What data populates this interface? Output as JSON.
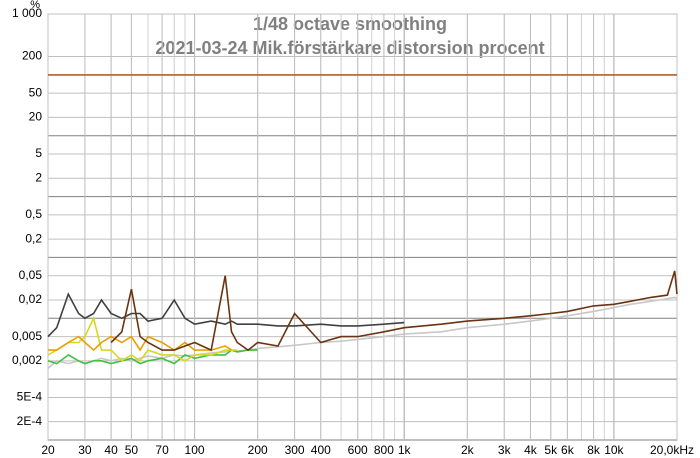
{
  "chart_data": {
    "type": "line",
    "title": "1/48 octave smoothing",
    "subtitle": "2021-03-24 Mik.förstärkare distorsion procent",
    "y_label": "%",
    "x_scale": "log",
    "y_scale": "log",
    "grid": true,
    "xlim": [
      20,
      20000
    ],
    "ylim": [
      0.0001,
      1000
    ],
    "xticks": [
      20,
      30,
      40,
      50,
      70,
      100,
      200,
      300,
      400,
      600,
      800,
      {
        "value": 1000,
        "label": "1k"
      },
      {
        "value": 2000,
        "label": "2k"
      },
      {
        "value": 3000,
        "label": "3k"
      },
      {
        "value": 4000,
        "label": "4k"
      },
      {
        "value": 5000,
        "label": "5k"
      },
      {
        "value": 6000,
        "label": "6k"
      },
      {
        "value": 8000,
        "label": "8k"
      },
      {
        "value": 10000,
        "label": "10k"
      },
      {
        "value": 20000,
        "label": "20,0kHz"
      }
    ],
    "yticks": [
      {
        "value": 1000,
        "label": "1 000"
      },
      200,
      50,
      20,
      5,
      2,
      {
        "value": 0.5,
        "label": "0,5"
      },
      {
        "value": 0.2,
        "label": "0,2"
      },
      {
        "value": 0.05,
        "label": "0,05"
      },
      {
        "value": 0.02,
        "label": "0,02"
      },
      {
        "value": 0.005,
        "label": "0,005"
      },
      {
        "value": 0.002,
        "label": "0,002"
      },
      {
        "value": 0.0005,
        "label": "5E-4"
      },
      {
        "value": 0.0002,
        "label": "2E-4"
      }
    ],
    "x": [
      20,
      22,
      25,
      28,
      30,
      33,
      36,
      40,
      45,
      50,
      55,
      60,
      70,
      80,
      90,
      100,
      120,
      140,
      150,
      160,
      180,
      200,
      250,
      300,
      400,
      500,
      600,
      800,
      1000,
      1500,
      2000,
      3000,
      4000,
      5000,
      6000,
      8000,
      10000,
      12000,
      15000,
      18000,
      19500,
      20000
    ],
    "series": [
      {
        "color": "#c8c8c8",
        "values": [
          0.0015,
          0.002,
          0.0018,
          0.002,
          0.0018,
          0.002,
          0.0022,
          0.002,
          0.0022,
          0.002,
          0.0022,
          0.0024,
          0.0022,
          0.0025,
          0.0024,
          0.0025,
          0.0027,
          0.0028,
          0.003,
          0.0029,
          0.003,
          0.0032,
          0.0034,
          0.0036,
          0.004,
          0.0042,
          0.0045,
          0.005,
          0.0055,
          0.006,
          0.007,
          0.008,
          0.009,
          0.01,
          0.011,
          0.013,
          0.015,
          0.017,
          0.019,
          0.021,
          0.022,
          0.021
        ]
      },
      {
        "color": "#40c040",
        "values": [
          0.002,
          0.0018,
          0.0025,
          0.002,
          0.0018,
          0.002,
          0.002,
          0.0018,
          0.002,
          0.0022,
          0.0018,
          0.002,
          0.0022,
          0.0018,
          0.0025,
          0.0022,
          0.0025,
          0.0025,
          0.003,
          0.0028,
          0.003,
          0.003,
          null,
          null,
          null,
          null,
          null,
          null,
          null,
          null,
          null,
          null,
          null,
          null,
          null,
          null,
          null,
          null,
          null,
          null,
          null,
          null
        ]
      },
      {
        "color": "#d8d820",
        "values": [
          0.0025,
          0.003,
          0.004,
          0.004,
          0.005,
          0.01,
          0.003,
          0.003,
          0.002,
          0.0025,
          0.002,
          0.003,
          0.0025,
          0.0025,
          0.002,
          0.0025,
          0.0025,
          0.003,
          0.003,
          0.003,
          null,
          null,
          null,
          null,
          null,
          null,
          null,
          null,
          null,
          null,
          null,
          null,
          null,
          null,
          null,
          null,
          null,
          null,
          null,
          null,
          null,
          null
        ]
      },
      {
        "color": "#e8a000",
        "values": [
          0.003,
          0.003,
          0.004,
          0.005,
          0.004,
          0.003,
          0.004,
          0.005,
          0.004,
          0.005,
          0.003,
          0.005,
          0.004,
          0.003,
          0.004,
          0.003,
          0.003,
          0.0035,
          0.003,
          null,
          null,
          null,
          null,
          null,
          null,
          null,
          null,
          null,
          null,
          null,
          null,
          null,
          null,
          null,
          null,
          null,
          null,
          null,
          null,
          null,
          null,
          null
        ]
      },
      {
        "color": "#404040",
        "values": [
          0.005,
          0.007,
          0.025,
          0.012,
          0.01,
          0.012,
          0.02,
          0.012,
          0.01,
          0.012,
          0.012,
          0.009,
          0.01,
          0.02,
          0.01,
          0.008,
          0.009,
          0.008,
          0.009,
          0.008,
          0.008,
          0.008,
          0.0075,
          0.0075,
          0.008,
          0.0075,
          0.0075,
          0.008,
          0.0085,
          null,
          null,
          null,
          null,
          null,
          null,
          null,
          null,
          null,
          null,
          null,
          null,
          null
        ]
      },
      {
        "color": "#6b3310",
        "values": [
          null,
          null,
          null,
          null,
          null,
          null,
          null,
          0.004,
          0.006,
          0.03,
          0.005,
          0.004,
          0.003,
          0.003,
          0.0035,
          0.004,
          0.003,
          0.05,
          0.006,
          0.004,
          0.003,
          0.004,
          0.0035,
          0.012,
          0.004,
          0.005,
          0.005,
          0.006,
          0.007,
          0.008,
          0.009,
          0.01,
          0.011,
          0.012,
          0.013,
          0.016,
          0.017,
          0.019,
          0.022,
          0.024,
          0.06,
          0.025
        ]
      },
      {
        "color": "#b5602b",
        "values": [
          100,
          100,
          100,
          100,
          100,
          100,
          100,
          100,
          100,
          100,
          100,
          100,
          100,
          100,
          100,
          100,
          100,
          100,
          100,
          100,
          100,
          100,
          100,
          100,
          100,
          100,
          100,
          100,
          100,
          100,
          100,
          100,
          100,
          100,
          100,
          100,
          100,
          100,
          100,
          100,
          100,
          100
        ]
      }
    ]
  }
}
